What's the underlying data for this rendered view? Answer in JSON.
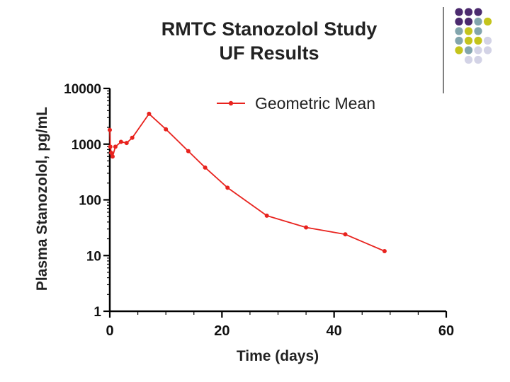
{
  "slide": {
    "title_line1": "RMTC Stanozolol Study",
    "title_line2": "UF Results"
  },
  "decoration": {
    "dot_colors": {
      "purple": "#4b2a6e",
      "teal": "#82a5ad",
      "lime": "#c4c41c",
      "lavender": "#d3d3e6"
    },
    "divider_color": "#555555"
  },
  "chart_data": {
    "type": "line",
    "title": "RMTC Stanozolol Study UF Results",
    "xlabel": "Time (days)",
    "ylabel": "Plasma Stanozolol, pg/mL",
    "xlim": [
      0,
      60
    ],
    "ylim": [
      1,
      10000
    ],
    "yscale": "log",
    "xticks": [
      0,
      20,
      40,
      60
    ],
    "xtick_labels": [
      "0",
      "20",
      "40",
      "60"
    ],
    "yticks": [
      1,
      10,
      100,
      1000,
      10000
    ],
    "ytick_labels": [
      "1",
      "10",
      "100",
      "1000",
      "10000"
    ],
    "grid": false,
    "legend_position": "top-right",
    "color": "#e8231e",
    "series": [
      {
        "name": "Geometric Mean",
        "x": [
          0,
          0.1,
          0.25,
          0.5,
          1,
          2,
          3,
          4,
          7,
          10,
          14,
          17,
          21,
          28,
          35,
          42,
          49
        ],
        "y": [
          1800,
          900,
          700,
          600,
          900,
          1100,
          1050,
          1300,
          3500,
          1850,
          750,
          380,
          165,
          52,
          32,
          24,
          12
        ]
      }
    ]
  }
}
